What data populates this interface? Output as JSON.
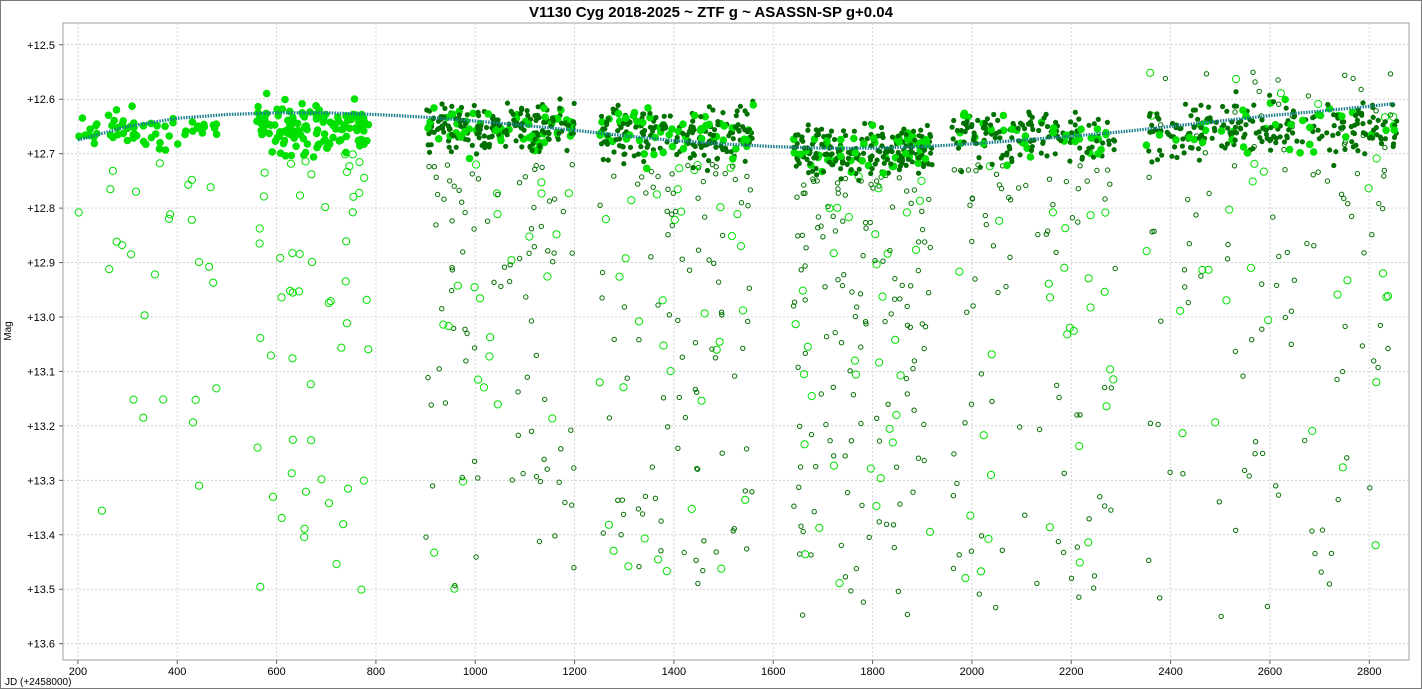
{
  "chart_data": {
    "type": "scatter",
    "title": "V1130 Cyg 2018-2025 ~ ZTF g ~ ASASSN-SP g+0.04",
    "xlabel": "JD (+2458000)",
    "ylabel": "Mag",
    "xlim": [
      170,
      2880
    ],
    "ylim": [
      12.46,
      13.63
    ],
    "y_inverted": true,
    "grid": true,
    "x_ticks": [
      200,
      400,
      600,
      800,
      1000,
      1200,
      1400,
      1600,
      1800,
      2000,
      2200,
      2400,
      2600,
      2800
    ],
    "y_ticks": [
      12.5,
      12.6,
      12.7,
      12.8,
      12.9,
      13.0,
      13.1,
      13.2,
      13.3,
      13.4,
      13.5,
      13.6
    ],
    "y_tick_labels": [
      "+12.5",
      "+12.6",
      "+12.7",
      "+12.8",
      "+12.9",
      "+13.0",
      "+13.1",
      "+13.2",
      "+13.3",
      "+13.4",
      "+13.5",
      "+13.6"
    ],
    "colors": {
      "bright_green": "#00e000",
      "dark_green": "#007000",
      "trend": "#1a7f8e",
      "grid": "#d4d4d4"
    },
    "seasons": [
      {
        "x": [
          200,
          480
        ],
        "dense": [
          12.6,
          12.71
        ],
        "faint": [
          12.7,
          13.5
        ],
        "n_dense": 60,
        "n_faint": 28,
        "bright_frac": 1.0
      },
      {
        "x": [
          560,
          790
        ],
        "dense": [
          12.58,
          12.72
        ],
        "faint": [
          12.7,
          13.55
        ],
        "n_dense": 130,
        "n_faint": 55,
        "bright_frac": 1.0
      },
      {
        "x": [
          900,
          1200
        ],
        "dense": [
          12.58,
          12.72
        ],
        "faint": [
          12.72,
          13.5
        ],
        "n_dense": 230,
        "n_faint": 110,
        "bright_frac": 0.25
      },
      {
        "x": [
          1250,
          1560
        ],
        "dense": [
          12.59,
          12.74
        ],
        "faint": [
          12.72,
          13.5
        ],
        "n_dense": 230,
        "n_faint": 130,
        "bright_frac": 0.25
      },
      {
        "x": [
          1640,
          1920
        ],
        "dense": [
          12.63,
          12.76
        ],
        "faint": [
          12.74,
          13.55
        ],
        "n_dense": 230,
        "n_faint": 170,
        "bright_frac": 0.22
      },
      {
        "x": [
          1960,
          2290
        ],
        "dense": [
          12.6,
          12.74
        ],
        "faint": [
          12.72,
          13.55
        ],
        "n_dense": 160,
        "n_faint": 110,
        "bright_frac": 0.2
      },
      {
        "x": [
          2350,
          2860
        ],
        "dense": [
          12.58,
          12.73
        ],
        "faint": [
          12.55,
          13.55
        ],
        "n_dense": 240,
        "n_faint": 140,
        "bright_frac": 0.2
      }
    ],
    "trend_line": {
      "x": [
        200,
        300,
        400,
        500,
        600,
        700,
        800,
        900,
        1000,
        1100,
        1200,
        1300,
        1400,
        1500,
        1600,
        1700,
        1800,
        1900,
        2000,
        2100,
        2200,
        2300,
        2400,
        2500,
        2600,
        2700,
        2800,
        2850
      ],
      "y": [
        12.675,
        12.65,
        12.635,
        12.628,
        12.625,
        12.625,
        12.628,
        12.633,
        12.64,
        12.648,
        12.657,
        12.667,
        12.676,
        12.682,
        12.687,
        12.69,
        12.69,
        12.687,
        12.682,
        12.675,
        12.668,
        12.66,
        12.65,
        12.64,
        12.63,
        12.622,
        12.613,
        12.608
      ]
    }
  }
}
